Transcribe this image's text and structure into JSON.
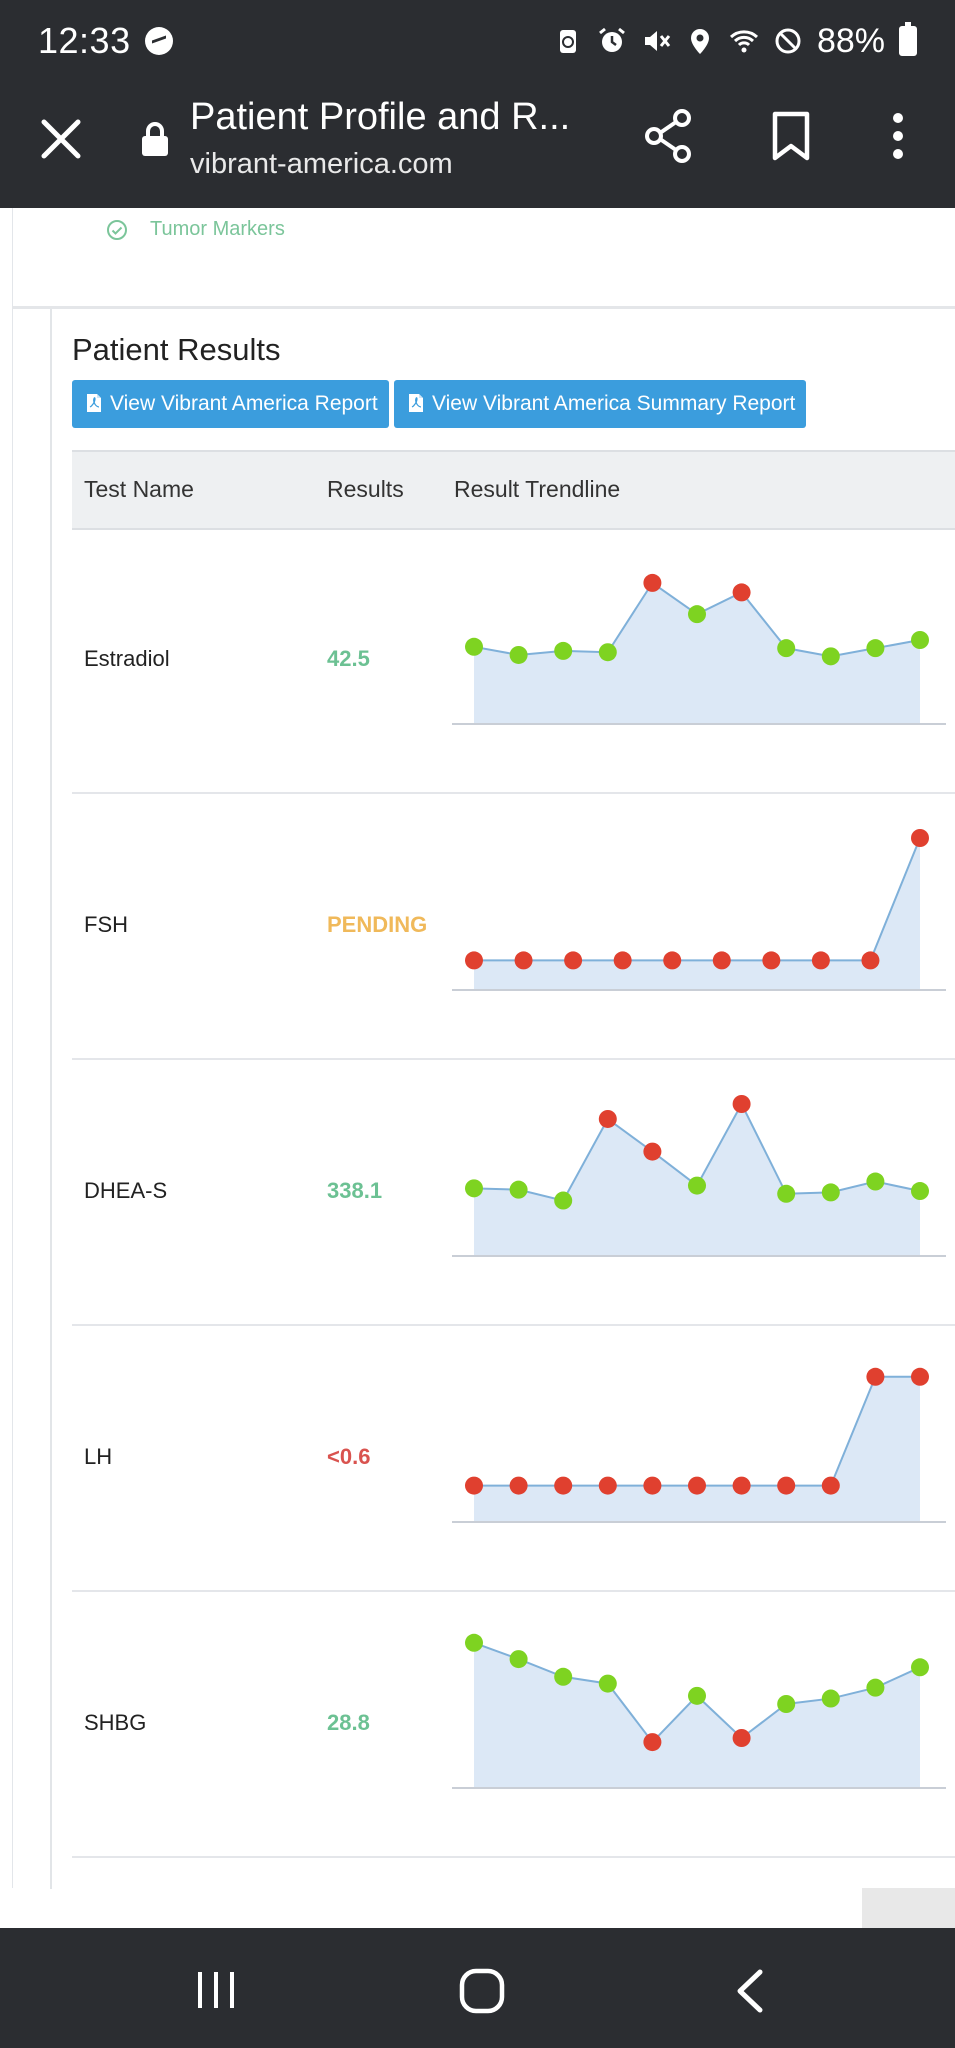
{
  "status_bar": {
    "time": "12:33",
    "battery": "88%",
    "icons": [
      "messenger-icon",
      "battery-saver-icon",
      "alarm-icon",
      "mute-icon",
      "location-icon",
      "wifi-icon",
      "do-not-disturb-icon",
      "battery-icon"
    ]
  },
  "toolbar": {
    "title": "Patient Profile and R...",
    "url": "vibrant-america.com",
    "icons": [
      "close-icon",
      "lock-icon",
      "share-icon",
      "bookmark-icon",
      "more-vertical-icon"
    ]
  },
  "page": {
    "tumor_markers": "Tumor Markers",
    "results_title": "Patient Results",
    "buttons": {
      "report": "View Vibrant America Report",
      "summary": "View Vibrant America Summary Report"
    },
    "table_headers": {
      "name": "Test Name",
      "results": "Results",
      "trend": "Result Trendline"
    },
    "colors": {
      "normal_value": "#6cc193",
      "pending_value": "#f0b95a",
      "abnormal_value": "#d9534f",
      "point_normal": "#7ed321",
      "point_abnormal": "#e0402f",
      "line": "#7fb0d9",
      "area": "#dce8f6",
      "button": "#3b9ddd"
    },
    "rows": [
      {
        "name": "Estradiol",
        "result": "42.5",
        "status": "normal"
      },
      {
        "name": "FSH",
        "result": "PENDING",
        "status": "pending"
      },
      {
        "name": "DHEA-S",
        "result": "338.1",
        "status": "normal"
      },
      {
        "name": "LH",
        "result": "<0.6",
        "status": "abnormal"
      },
      {
        "name": "SHBG",
        "result": "28.8",
        "status": "normal"
      }
    ]
  },
  "chart_data": [
    {
      "type": "line",
      "test": "Estradiol",
      "values": [
        0.45,
        0.39,
        0.42,
        0.41,
        0.92,
        0.69,
        0.85,
        0.44,
        0.38,
        0.44,
        0.5
      ],
      "flags": [
        "n",
        "n",
        "n",
        "n",
        "h",
        "n",
        "h",
        "n",
        "n",
        "n",
        "n"
      ]
    },
    {
      "type": "line",
      "test": "FSH",
      "values": [
        0.1,
        0.1,
        0.1,
        0.1,
        0.1,
        0.1,
        0.1,
        0.1,
        0.1,
        1.0
      ],
      "flags": [
        "h",
        "h",
        "h",
        "h",
        "h",
        "h",
        "h",
        "h",
        "h",
        "h"
      ]
    },
    {
      "type": "line",
      "test": "DHEA-S",
      "values": [
        0.38,
        0.37,
        0.29,
        0.89,
        0.65,
        0.4,
        1.0,
        0.34,
        0.35,
        0.43,
        0.36
      ],
      "flags": [
        "n",
        "n",
        "n",
        "h",
        "h",
        "n",
        "h",
        "n",
        "n",
        "n",
        "n"
      ]
    },
    {
      "type": "line",
      "test": "LH",
      "values": [
        0.15,
        0.15,
        0.15,
        0.15,
        0.15,
        0.15,
        0.15,
        0.15,
        0.15,
        0.95,
        0.95
      ],
      "flags": [
        "h",
        "h",
        "h",
        "h",
        "h",
        "h",
        "h",
        "h",
        "h",
        "h",
        "h"
      ]
    },
    {
      "type": "line",
      "test": "SHBG",
      "values": [
        0.95,
        0.83,
        0.7,
        0.65,
        0.22,
        0.56,
        0.25,
        0.5,
        0.54,
        0.62,
        0.77
      ],
      "flags": [
        "n",
        "n",
        "n",
        "n",
        "h",
        "n",
        "h",
        "n",
        "n",
        "n",
        "n"
      ]
    }
  ]
}
